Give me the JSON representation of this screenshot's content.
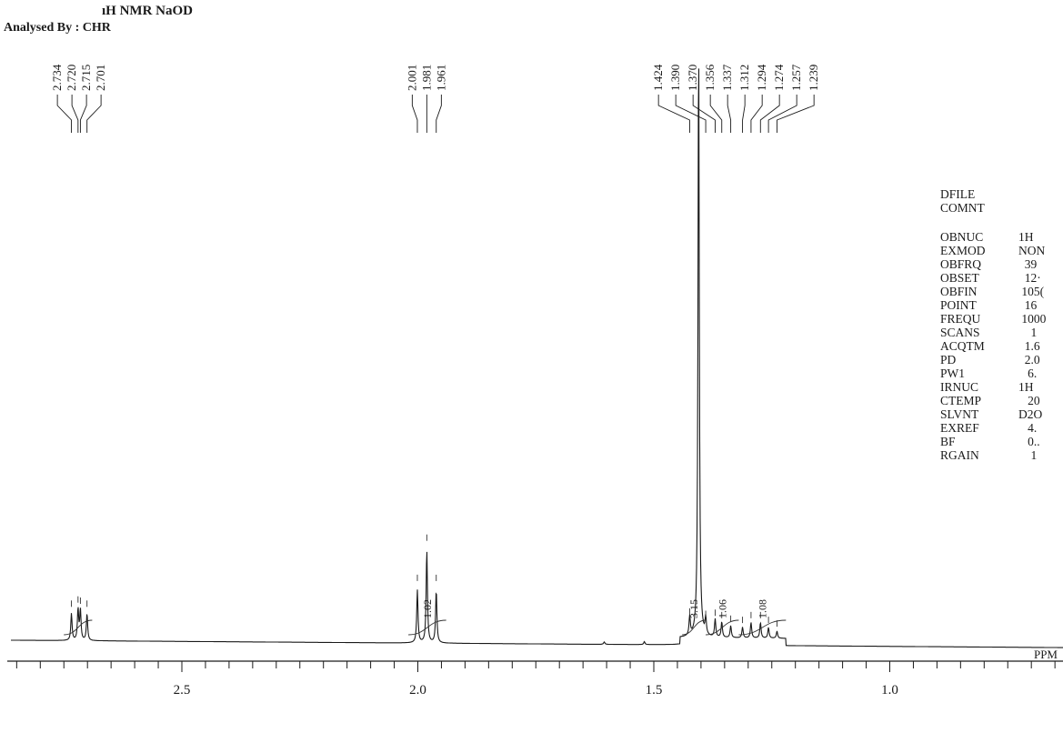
{
  "header": {
    "title": "ıH NMR NaOD",
    "analyst": "Analysed By : CHR"
  },
  "parameters": {
    "top": [
      {
        "name": "DFILE",
        "value": ""
      },
      {
        "name": "COMNT",
        "value": ""
      }
    ],
    "rows": [
      {
        "name": "OBNUC",
        "value": "1H"
      },
      {
        "name": "EXMOD",
        "value": "NON"
      },
      {
        "name": "OBFRQ",
        "value": "  39"
      },
      {
        "name": "OBSET",
        "value": "  12·"
      },
      {
        "name": "OBFIN",
        "value": " 105("
      },
      {
        "name": "POINT",
        "value": "  16"
      },
      {
        "name": "FREQU",
        "value": " 1000"
      },
      {
        "name": "SCANS",
        "value": "    1"
      },
      {
        "name": "ACQTM",
        "value": "  1.6"
      },
      {
        "name": "PD",
        "value": "  2.0"
      },
      {
        "name": "PW1",
        "value": "   6."
      },
      {
        "name": "IRNUC",
        "value": "1H"
      },
      {
        "name": "CTEMP",
        "value": "   20"
      },
      {
        "name": "SLVNT",
        "value": "D2O"
      },
      {
        "name": "EXREF",
        "value": "   4."
      },
      {
        "name": "BF",
        "value": "   0.."
      },
      {
        "name": "RGAIN",
        "value": "    1"
      }
    ]
  },
  "chart_data": {
    "type": "line",
    "xlabel": "PPM",
    "xlim": [
      2.88,
      0.35
    ],
    "x_reversed": true,
    "x_ticks": [
      2.5,
      2.0,
      1.5,
      1.0
    ],
    "x_tick_labels": [
      "2.5",
      "2.0",
      "1.5",
      "1.0"
    ],
    "peaks": [
      {
        "ppm": 2.734,
        "height": 0.045
      },
      {
        "ppm": 2.72,
        "height": 0.052
      },
      {
        "ppm": 2.715,
        "height": 0.05
      },
      {
        "ppm": 2.701,
        "height": 0.045
      },
      {
        "ppm": 2.001,
        "height": 0.088
      },
      {
        "ppm": 1.981,
        "height": 0.155
      },
      {
        "ppm": 1.961,
        "height": 0.088
      },
      {
        "ppm": 1.424,
        "height": 0.032
      },
      {
        "ppm": 1.405,
        "height": 1.0
      },
      {
        "ppm": 1.39,
        "height": 0.028
      },
      {
        "ppm": 1.37,
        "height": 0.03
      },
      {
        "ppm": 1.356,
        "height": 0.026
      },
      {
        "ppm": 1.337,
        "height": 0.02
      },
      {
        "ppm": 1.312,
        "height": 0.018
      },
      {
        "ppm": 1.294,
        "height": 0.026
      },
      {
        "ppm": 1.274,
        "height": 0.026
      },
      {
        "ppm": 1.257,
        "height": 0.018
      },
      {
        "ppm": 1.239,
        "height": 0.012
      }
    ],
    "minor_peaks": [
      {
        "ppm": 1.605,
        "height": 0.004
      },
      {
        "ppm": 1.52,
        "height": 0.005
      }
    ],
    "peak_label_groups": [
      {
        "labels": [
          "2.734",
          "2.720",
          "2.715",
          "2.701"
        ],
        "ppm": [
          2.734,
          2.72,
          2.715,
          2.701
        ]
      },
      {
        "labels": [
          "2.001",
          "1.981",
          "1.961"
        ],
        "ppm": [
          2.001,
          1.981,
          1.961
        ]
      },
      {
        "labels": [
          "1.424",
          "1.390",
          "1.370",
          "1.356",
          "1.337",
          "1.312",
          "1.294",
          "1.274",
          "1.257",
          "1.239"
        ],
        "ppm": [
          1.424,
          1.39,
          1.37,
          1.356,
          1.337,
          1.312,
          1.294,
          1.274,
          1.257,
          1.239
        ]
      }
    ],
    "integrals": [
      {
        "from": 2.75,
        "to": 2.69,
        "label": ""
      },
      {
        "from": 2.02,
        "to": 1.94,
        "label": "1.02"
      },
      {
        "from": 1.44,
        "to": 1.39,
        "label": "3.15"
      },
      {
        "from": 1.39,
        "to": 1.32,
        "label": "1.06"
      },
      {
        "from": 1.32,
        "to": 1.22,
        "label": "1.08"
      }
    ]
  }
}
